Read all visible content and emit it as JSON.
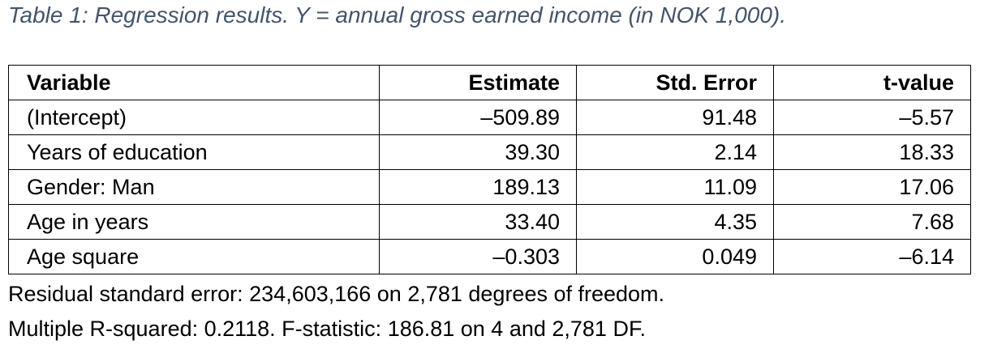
{
  "caption": "Table 1: Regression results. Y = annual gross earned income (in NOK 1,000).",
  "table": {
    "headers": [
      "Variable",
      "Estimate",
      "Std. Error",
      "t-value"
    ],
    "rows": [
      [
        "(Intercept)",
        "–509.89",
        "91.48",
        "–5.57"
      ],
      [
        "Years of education",
        "39.30",
        "2.14",
        "18.33"
      ],
      [
        "Gender: Man",
        "189.13",
        "11.09",
        "17.06"
      ],
      [
        "Age in years",
        "33.40",
        "4.35",
        "7.68"
      ],
      [
        "Age square",
        "–0.303",
        "0.049",
        "–6.14"
      ]
    ]
  },
  "notes": {
    "residual": "Residual standard error: 234,603,166 on 2,781 degrees of freedom.",
    "fit": "Multiple R-squared: 0.2118. F-statistic: 186.81 on 4 and 2,781 DF."
  },
  "colors": {
    "caption": "#44546a",
    "text": "#000000",
    "border": "#000000"
  }
}
